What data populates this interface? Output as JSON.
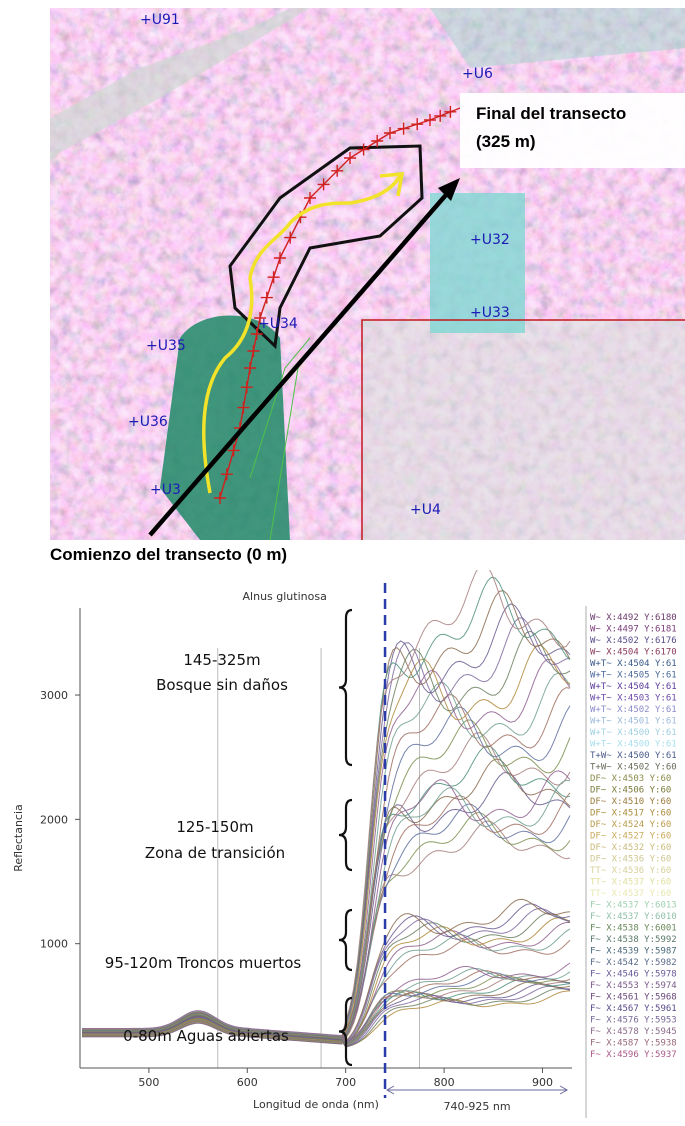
{
  "map": {
    "title_start": "Comienzo del transecto (0 m)",
    "title_end_line1": "Final del transecto",
    "title_end_line2": "(325 m)",
    "markers": [
      {
        "label": "+U91"
      },
      {
        "label": "+U6"
      },
      {
        "label": "+U32"
      },
      {
        "label": "+U33"
      },
      {
        "label": "+U34"
      },
      {
        "label": "+U35"
      },
      {
        "label": "+U36"
      },
      {
        "label": "+U3"
      },
      {
        "label": "+U4"
      }
    ]
  },
  "chart_data": {
    "type": "line",
    "title": "Alnus glutinosa",
    "xlabel": "Longitud de onda (nm)",
    "ylabel": "Reflectancia",
    "xlim": [
      430,
      930
    ],
    "ylim": [
      0,
      3700
    ],
    "xticks": [
      500,
      600,
      700,
      800,
      900
    ],
    "yticks": [
      1000,
      2000,
      3000
    ],
    "range_label": "740-925 nm",
    "vertical_marker_x": 740,
    "annotations": [
      {
        "line1": "145-325m",
        "line2": "Bosque sin daños"
      },
      {
        "line1": "125-150m",
        "line2": "Zona de transición"
      },
      {
        "line1": "95-120m Troncos muertos",
        "line2": ""
      },
      {
        "line1": "0-80m Aguas abiertas",
        "line2": ""
      }
    ],
    "groups": [
      {
        "name": "Bosque sin daños",
        "count": 16,
        "nir_level": 2900,
        "color": "#8a6b8a"
      },
      {
        "name": "Zona de transición",
        "count": 6,
        "nir_level": 1950,
        "color": "#b9a24a"
      },
      {
        "name": "Troncos muertos",
        "count": 8,
        "nir_level": 1050,
        "color": "#b08a3c"
      },
      {
        "name": "Aguas abiertas",
        "count": 12,
        "nir_level": 600,
        "color": "#6aa7a7"
      }
    ],
    "legend": [
      "W~ X:4492 Y:6180",
      "W~ X:4497 Y:6181",
      "W~ X:4502 Y:6176",
      "W~ X:4504 Y:6170",
      "W+T~ X:4504 Y:61",
      "W+T~ X:4505 Y:61",
      "W+T~ X:4504 Y:61",
      "W+T~ X:4503 Y:61",
      "W+T~ X:4502 Y:61",
      "W+T~ X:4501 Y:61",
      "W+T~ X:4500 Y:61",
      "W+T~ X:4500 Y:61",
      "T+W~ X:4500 Y:61",
      "T+W~ X:4502 Y:60",
      "DF~ X:4503 Y:60",
      "DF~ X:4506 Y:60",
      "DF~ X:4510 Y:60",
      "DF~ X:4517 Y:60",
      "DF~ X:4524 Y:60",
      "DF~ X:4527 Y:60",
      "DF~ X:4532 Y:60",
      "DF~ X:4536 Y:60",
      "TT~ X:4536 Y:60",
      "TT~ X:4537 Y:60",
      "TT~ X:4537 Y:60",
      "F~ X:4537 Y:6013",
      "F~ X:4537 Y:6010",
      "F~ X:4538 Y:6001",
      "F~ X:4538 Y:5992",
      "F~ X:4539 Y:5987",
      "F~ X:4542 Y:5982",
      "F~ X:4546 Y:5978",
      "F~ X:4553 Y:5974",
      "F~ X:4561 Y:5968",
      "F~ X:4567 Y:5961",
      "F~ X:4576 Y:5953",
      "F~ X:4578 Y:5945",
      "F~ X:4587 Y:5938",
      "F~ X:4596 Y:5937"
    ]
  }
}
